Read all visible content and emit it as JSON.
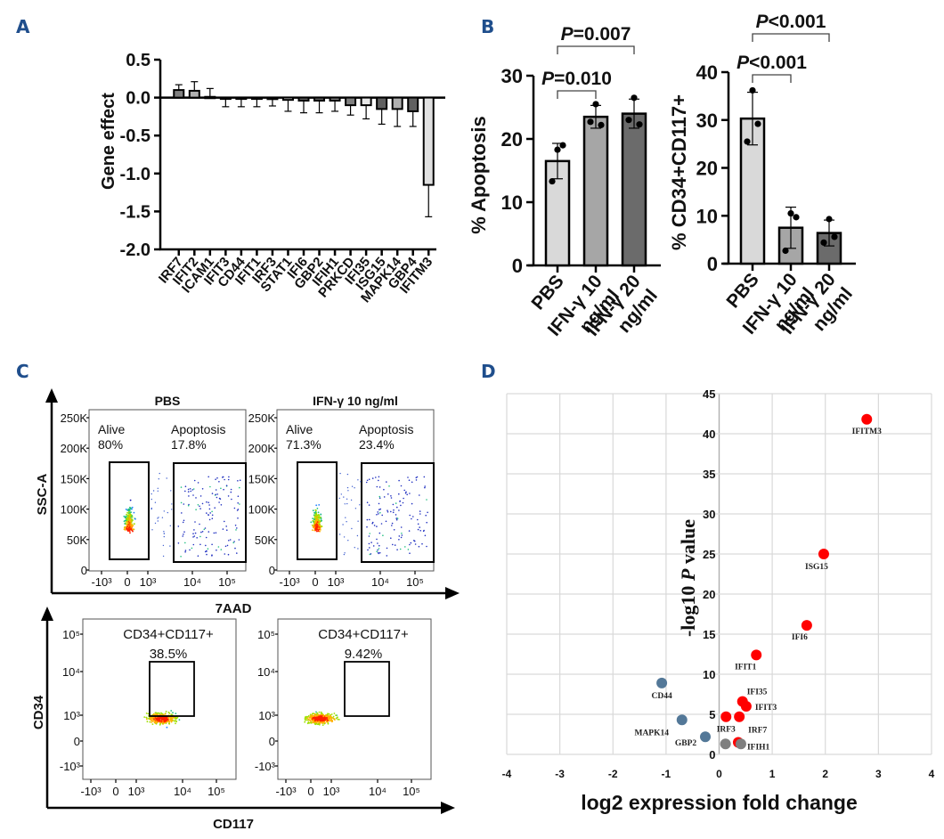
{
  "panels": {
    "A": {
      "label": "A"
    },
    "B": {
      "label": "B"
    },
    "C": {
      "label": "C"
    },
    "D": {
      "label": "D"
    }
  },
  "chart_data": [
    {
      "id": "A",
      "type": "bar",
      "title": "",
      "xlabel": "",
      "ylabel": "Gene effect",
      "ylim": [
        -2.0,
        0.5
      ],
      "yticks": [
        "0.5",
        "0.0",
        "-0.5",
        "-1.0",
        "-1.5",
        "-2.0"
      ],
      "ytick_values": [
        0.5,
        0.0,
        -0.5,
        -1.0,
        -1.5,
        -2.0
      ],
      "categories": [
        "IRF7",
        "IFIT2",
        "ICAM1",
        "IFIT3",
        "CD44",
        "IFIT1",
        "IRF3",
        "STAT1",
        "IFI6",
        "GBP2",
        "IFIH1",
        "PRKCD",
        "IFI35",
        "ISG15",
        "MAPK14",
        "GBP4",
        "IFITM3"
      ],
      "values": [
        0.1,
        0.09,
        0.01,
        -0.01,
        -0.01,
        -0.01,
        -0.02,
        -0.03,
        -0.04,
        -0.04,
        -0.04,
        -0.1,
        -0.1,
        -0.15,
        -0.15,
        -0.18,
        -1.15
      ],
      "errors": [
        0.07,
        0.12,
        0.11,
        0.11,
        0.11,
        0.11,
        0.09,
        0.15,
        0.16,
        0.16,
        0.14,
        0.13,
        0.18,
        0.2,
        0.23,
        0.2,
        0.42
      ],
      "fills": [
        "#808080",
        "#b0b0b0",
        "#ffffff",
        "#ffffff",
        "#ffffff",
        "#ffffff",
        "#ffffff",
        "#ffffff",
        "#606060",
        "#606060",
        "#808080",
        "#808080",
        "#e8e8e8",
        "#606060",
        "#b0b0b0",
        "#606060",
        "#e0e0e0"
      ],
      "grid": false
    },
    {
      "id": "B1",
      "type": "bar",
      "ylabel": "% Apoptosis",
      "ylim": [
        0,
        30
      ],
      "yticks": [
        "0",
        "10",
        "20",
        "30"
      ],
      "ytick_values": [
        0,
        10,
        20,
        30
      ],
      "categories": [
        "PBS",
        "IFN-γ 10 ng/ml",
        "IFN-γ 20 ng/ml"
      ],
      "category_lines": [
        [
          "PBS"
        ],
        [
          "IFN-γ 10",
          "ng/ml"
        ],
        [
          "IFN-γ 20",
          "ng/ml"
        ]
      ],
      "values": [
        16.5,
        23.5,
        24.0
      ],
      "errors": [
        2.8,
        1.8,
        2.3
      ],
      "points": [
        [
          18.3,
          19.0,
          13.3
        ],
        [
          25.5,
          22.2,
          22.7
        ],
        [
          26.5,
          22.3,
          23.0
        ]
      ],
      "fills": [
        "#d9d9d9",
        "#a6a6a6",
        "#6b6b6b"
      ],
      "comparisons": [
        {
          "from": 0,
          "to": 1,
          "label_prefix": "P",
          "label_value": "=0.010"
        },
        {
          "from": 0,
          "to": 2,
          "label_prefix": "P",
          "label_value": "=0.007"
        }
      ]
    },
    {
      "id": "B2",
      "type": "bar",
      "ylabel": "% CD34+CD117+",
      "ylim": [
        0,
        40
      ],
      "yticks": [
        "0",
        "10",
        "20",
        "30",
        "40"
      ],
      "ytick_values": [
        0,
        10,
        20,
        30,
        40
      ],
      "categories": [
        "PBS",
        "IFN-γ 10 ng/ml",
        "IFN-γ 20 ng/ml"
      ],
      "category_lines": [
        [
          "PBS"
        ],
        [
          "IFN-γ 10",
          "ng/ml"
        ],
        [
          "IFN-γ 20",
          "ng/ml"
        ]
      ],
      "values": [
        30.3,
        7.5,
        6.4
      ],
      "errors": [
        5.5,
        4.3,
        2.7
      ],
      "points": [
        [
          36.2,
          29.2,
          25.5
        ],
        [
          10.5,
          9.7,
          2.7
        ],
        [
          9.3,
          5.6,
          4.4
        ]
      ],
      "fills": [
        "#d9d9d9",
        "#a6a6a6",
        "#6b6b6b"
      ],
      "comparisons": [
        {
          "from": 0,
          "to": 1,
          "label_prefix": "P",
          "label_value": "<0.001"
        },
        {
          "from": 0,
          "to": 2,
          "label_prefix": "P",
          "label_value": "<0.001"
        }
      ]
    },
    {
      "id": "C",
      "type": "scatter",
      "subtype": "flow-cytometry",
      "top_row": {
        "xlabel": "7AAD",
        "ylabel": "SSC-A",
        "yticks": [
          "0",
          "50K",
          "100K",
          "150K",
          "200K",
          "250K"
        ],
        "xticks": [
          "-10³",
          "0",
          "10³",
          "10⁴",
          "10⁵"
        ],
        "plots": [
          {
            "title": "PBS",
            "gates": [
              {
                "name": "Alive",
                "value": "80%"
              },
              {
                "name": "Apoptosis",
                "value": "17.8%"
              }
            ]
          },
          {
            "title": "IFN-γ 10 ng/ml",
            "gates": [
              {
                "name": "Alive",
                "value": "71.3%"
              },
              {
                "name": "Apoptosis",
                "value": "23.4%"
              }
            ]
          }
        ]
      },
      "bottom_row": {
        "xlabel": "CD117",
        "ylabel": "CD34",
        "yticks": [
          "-10³",
          "0",
          "10³",
          "10⁴",
          "10⁵"
        ],
        "xticks": [
          "-10³",
          "0",
          "10³",
          "10⁴",
          "10⁵"
        ],
        "plots": [
          {
            "gate_name": "CD34+CD117+",
            "value": "38.5%"
          },
          {
            "gate_name": "CD34+CD117+",
            "value": "9.42%"
          }
        ]
      }
    },
    {
      "id": "D",
      "type": "scatter",
      "subtype": "volcano",
      "xlabel": "log2 expression fold change",
      "ylabel_parts": [
        "-log10 ",
        "P",
        " value"
      ],
      "xlim": [
        -4,
        4
      ],
      "ylim": [
        0,
        45
      ],
      "xticks": [
        "-4",
        "-3",
        "-2",
        "-1",
        "0",
        "1",
        "2",
        "3",
        "4"
      ],
      "xtick_values": [
        -4,
        -3,
        -2,
        -1,
        0,
        1,
        2,
        3,
        4
      ],
      "yticks": [
        "0",
        "5",
        "10",
        "15",
        "20",
        "25",
        "30",
        "35",
        "40",
        "45"
      ],
      "ytick_values": [
        0,
        5,
        10,
        15,
        20,
        25,
        30,
        35,
        40,
        45
      ],
      "grid": true,
      "colors": {
        "up": "#ff0000",
        "down": "#537898",
        "ns": "#7f7f7f"
      },
      "points": [
        {
          "gene": "IFITM3",
          "x": 2.78,
          "y": 41.8,
          "group": "up"
        },
        {
          "gene": "ISG15",
          "x": 1.97,
          "y": 25.0,
          "group": "up"
        },
        {
          "gene": "IFI6",
          "x": 1.65,
          "y": 16.1,
          "group": "up"
        },
        {
          "gene": "IFIT1",
          "x": 0.7,
          "y": 12.4,
          "group": "up"
        },
        {
          "gene": "IFI35",
          "x": 0.44,
          "y": 6.6,
          "group": "up"
        },
        {
          "gene": "IFIT3",
          "x": 0.51,
          "y": 6.0,
          "group": "up"
        },
        {
          "gene": "IRF3",
          "x": 0.13,
          "y": 4.7,
          "group": "up"
        },
        {
          "gene": "IRF7",
          "x": 0.38,
          "y": 4.7,
          "group": "up"
        },
        {
          "gene": "IFIH1",
          "x": 0.36,
          "y": 1.5,
          "group": "up"
        },
        {
          "gene": "CD44",
          "x": -1.08,
          "y": 8.9,
          "group": "down"
        },
        {
          "gene": "MAPK14",
          "x": -0.7,
          "y": 4.3,
          "group": "down"
        },
        {
          "gene": "GBP2",
          "x": -0.26,
          "y": 2.2,
          "group": "down"
        },
        {
          "gene": "",
          "x": 0.12,
          "y": 1.3,
          "group": "ns"
        },
        {
          "gene": "",
          "x": 0.41,
          "y": 1.3,
          "group": "ns"
        }
      ]
    }
  ]
}
